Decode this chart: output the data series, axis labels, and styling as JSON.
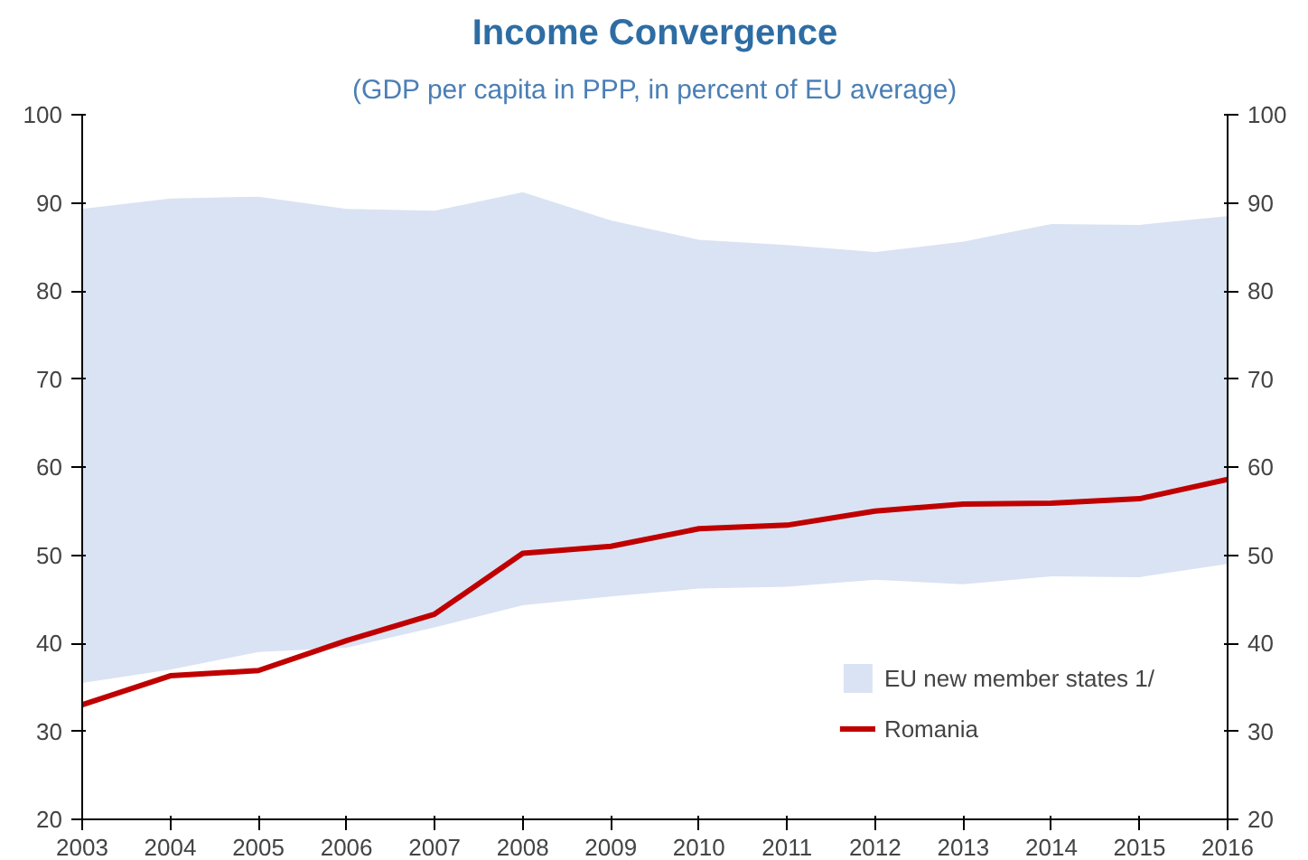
{
  "chart_data": {
    "type": "line",
    "title": "Income Convergence",
    "subtitle": "(GDP per capita in PPP, in percent of EU average)",
    "x": [
      2003,
      2004,
      2005,
      2006,
      2007,
      2008,
      2009,
      2010,
      2011,
      2012,
      2013,
      2014,
      2015,
      2016
    ],
    "xlim": [
      2003,
      2016
    ],
    "xticks": [
      2003,
      2004,
      2005,
      2006,
      2007,
      2008,
      2009,
      2010,
      2011,
      2012,
      2013,
      2014,
      2015,
      2016
    ],
    "ylim": [
      20,
      100
    ],
    "yticks": [
      20,
      30,
      40,
      50,
      60,
      70,
      80,
      90,
      100
    ],
    "y2lim": [
      20,
      100
    ],
    "y2ticks": [
      20,
      30,
      40,
      50,
      60,
      70,
      80,
      90,
      100
    ],
    "grid": false,
    "legend": "bottom right",
    "marker": "none",
    "line_style": "solid",
    "series": [
      {
        "name": "EU new member states 1/",
        "color": "#dae3f3",
        "values": [
          null,
          null,
          null,
          null,
          null,
          null,
          null,
          null,
          null,
          null,
          null,
          null,
          null,
          null
        ],
        "lower": [
          35.5,
          37,
          39,
          39.5,
          41.8,
          44.3,
          45.3,
          46.2,
          46.4,
          47.2,
          46.7,
          47.6,
          47.5,
          49
        ],
        "upper": [
          89.3,
          90.5,
          90.7,
          89.3,
          89.1,
          91.2,
          88,
          85.8,
          85.2,
          84.4,
          85.6,
          87.6,
          87.5,
          88.5
        ]
      },
      {
        "name": "Romania",
        "color": "#c00000",
        "values": [
          33,
          36.3,
          36.9,
          40.3,
          43.3,
          50.2,
          51,
          53,
          53.4,
          55,
          55.8,
          55.9,
          56.4,
          58.6
        ]
      }
    ]
  }
}
